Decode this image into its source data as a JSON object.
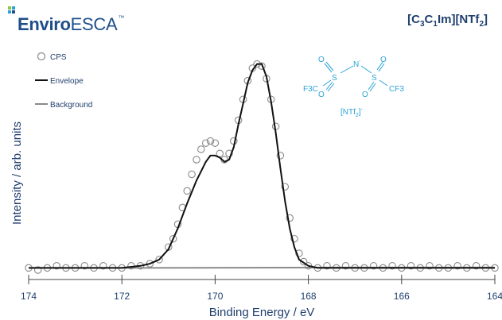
{
  "brand": {
    "name_bold": "Enviro",
    "name_light": "ESCA",
    "tm": "™"
  },
  "compound": {
    "prefix": "[C",
    "s1": "3",
    "mid1": "C",
    "s2": "1",
    "mid2": "Im][NTf",
    "s3": "2",
    "suffix": "]"
  },
  "molecule": {
    "atoms": [
      "O",
      "S",
      "N",
      "S",
      "O",
      "O",
      "O",
      "F3C",
      "CF3"
    ],
    "n_charge": "-",
    "label_main": "[NTf",
    "label_sub": "2",
    "label_close": "]",
    "label_sup": "-"
  },
  "colors": {
    "brand": "#1f4e8a",
    "structure": "#29a3d8",
    "envelope": "#111111",
    "background_line": "#8a8a8a",
    "cps_marker": "#8a8a8a"
  },
  "chart_data": {
    "type": "scatter",
    "xlabel": "Binding Energy / eV",
    "ylabel": "Intensity / arb. units",
    "xlim": [
      174,
      164
    ],
    "x_reversed": true,
    "ylim": [
      0,
      1.0
    ],
    "xticks": [
      "174",
      "172",
      "170",
      "168",
      "166",
      "164"
    ],
    "legend": {
      "position": "top-left",
      "entries": [
        "CPS",
        "Envelope",
        "Background"
      ]
    },
    "series": [
      {
        "name": "CPS",
        "kind": "markers",
        "x": [
          174.0,
          173.8,
          173.6,
          173.4,
          173.2,
          173.0,
          172.8,
          172.6,
          172.4,
          172.2,
          172.0,
          171.8,
          171.6,
          171.4,
          171.2,
          171.0,
          170.9,
          170.8,
          170.7,
          170.6,
          170.5,
          170.4,
          170.3,
          170.2,
          170.1,
          170.0,
          169.9,
          169.8,
          169.7,
          169.6,
          169.5,
          169.4,
          169.3,
          169.2,
          169.1,
          169.0,
          168.9,
          168.8,
          168.7,
          168.6,
          168.5,
          168.4,
          168.3,
          168.2,
          168.1,
          168.0,
          167.8,
          167.6,
          167.4,
          167.2,
          167.0,
          166.8,
          166.6,
          166.4,
          166.2,
          166.0,
          165.8,
          165.6,
          165.4,
          165.2,
          165.0,
          164.8,
          164.6,
          164.4,
          164.2,
          164.0
        ],
        "y": [
          0.01,
          0.0,
          0.01,
          0.02,
          0.01,
          0.01,
          0.02,
          0.01,
          0.02,
          0.01,
          0.01,
          0.02,
          0.02,
          0.03,
          0.05,
          0.11,
          0.15,
          0.22,
          0.3,
          0.38,
          0.46,
          0.53,
          0.58,
          0.61,
          0.62,
          0.61,
          0.56,
          0.53,
          0.56,
          0.62,
          0.72,
          0.82,
          0.91,
          0.97,
          0.99,
          0.98,
          0.92,
          0.82,
          0.69,
          0.55,
          0.4,
          0.25,
          0.15,
          0.08,
          0.04,
          0.02,
          0.01,
          0.02,
          0.01,
          0.02,
          0.01,
          0.01,
          0.02,
          0.01,
          0.02,
          0.01,
          0.02,
          0.01,
          0.02,
          0.01,
          0.01,
          0.02,
          0.01,
          0.02,
          0.01,
          0.01
        ]
      },
      {
        "name": "Envelope",
        "kind": "line",
        "x": [
          174.0,
          172.0,
          171.6,
          171.4,
          171.2,
          171.0,
          170.8,
          170.6,
          170.4,
          170.2,
          170.1,
          170.0,
          169.9,
          169.8,
          169.7,
          169.6,
          169.5,
          169.4,
          169.3,
          169.2,
          169.1,
          169.0,
          168.9,
          168.8,
          168.7,
          168.6,
          168.5,
          168.4,
          168.3,
          168.2,
          168.0,
          167.8,
          167.6,
          164.0
        ],
        "y": [
          0.01,
          0.01,
          0.02,
          0.03,
          0.05,
          0.1,
          0.2,
          0.32,
          0.43,
          0.52,
          0.55,
          0.55,
          0.54,
          0.52,
          0.53,
          0.59,
          0.7,
          0.8,
          0.9,
          0.96,
          0.99,
          0.99,
          0.93,
          0.81,
          0.66,
          0.49,
          0.33,
          0.2,
          0.11,
          0.05,
          0.02,
          0.01,
          0.01,
          0.01
        ]
      },
      {
        "name": "Background",
        "kind": "line",
        "x": [
          174.0,
          171.6,
          167.6,
          164.0
        ],
        "y": [
          0.01,
          0.01,
          0.012,
          0.012
        ]
      }
    ]
  }
}
